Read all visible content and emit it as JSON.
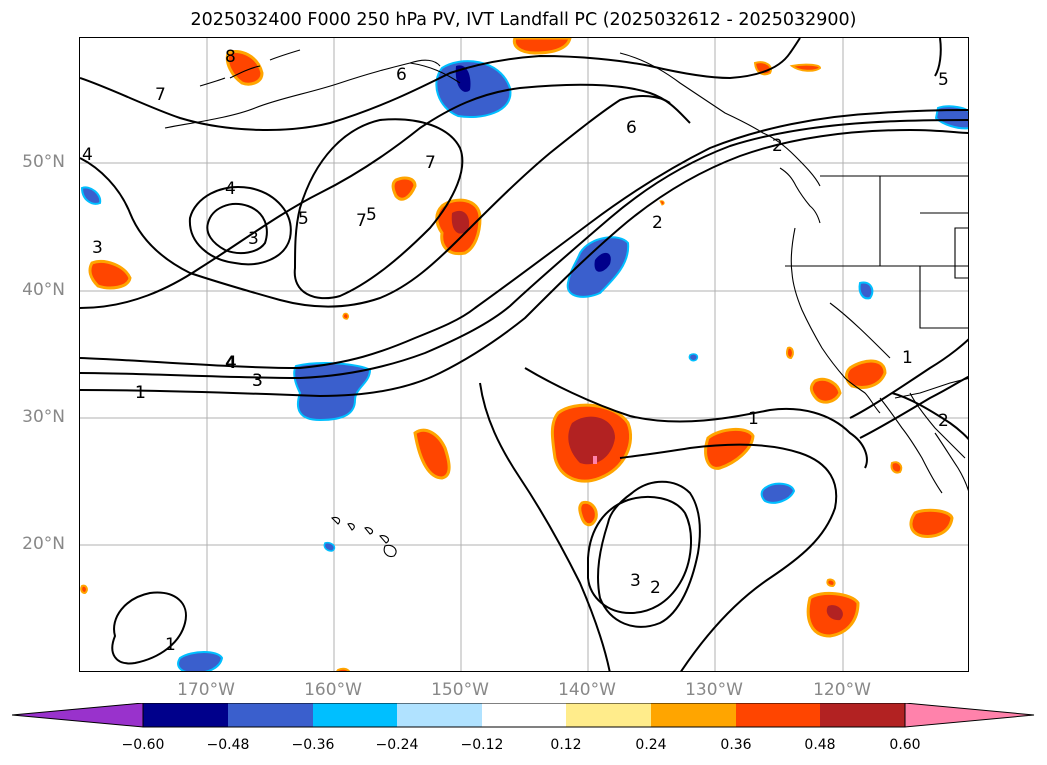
{
  "title": "2025032400 F000 250 hPa PV, IVT Landfall PC (2025032612 - 2025032900)",
  "lat_labels": [
    "50°N",
    "40°N",
    "30°N",
    "20°N"
  ],
  "lon_labels": [
    "170°W",
    "160°W",
    "150°W",
    "140°W",
    "130°W",
    "120°W"
  ],
  "colorbar": {
    "ticks": [
      "−0.60",
      "−0.48",
      "−0.36",
      "−0.24",
      "−0.12",
      "0.12",
      "0.24",
      "0.36",
      "0.48",
      "0.60"
    ],
    "colors": [
      "#9932cc",
      "#00008b",
      "#3a5fcd",
      "#00bfff",
      "#b0e2ff",
      "#ffffff",
      "#ffec8b",
      "#ffa500",
      "#ff4500",
      "#b22222",
      "#ff82ab"
    ]
  },
  "contour_labels": [
    "1",
    "2",
    "3",
    "4",
    "5",
    "6",
    "7",
    "8",
    "4",
    "3",
    "7",
    "4",
    "3",
    "5",
    "7",
    "6",
    "2",
    "5",
    "4",
    "3",
    "1",
    "1",
    "3",
    "2",
    "1",
    "2",
    "1"
  ],
  "map": {
    "lat_range": [
      10,
      60
    ],
    "lon_range": [
      -180,
      -110
    ]
  }
}
